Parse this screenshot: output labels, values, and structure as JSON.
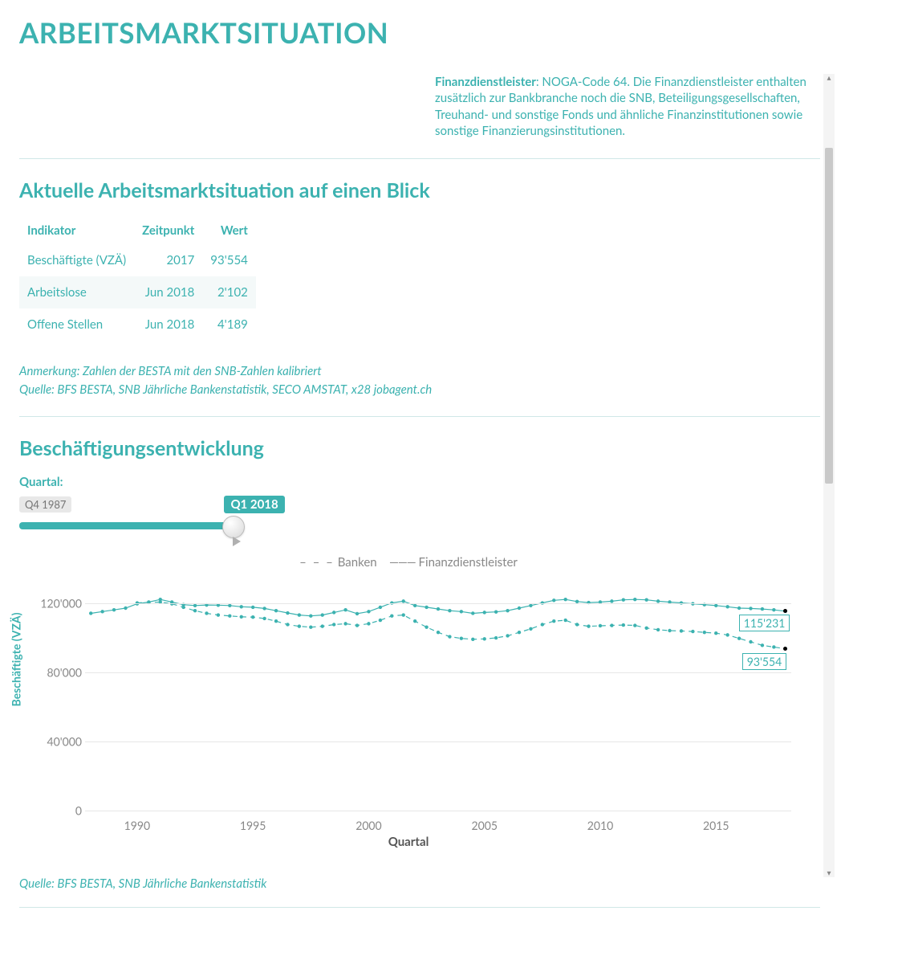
{
  "page": {
    "title": "ARBEITSMARKTSITUATION"
  },
  "intro": {
    "bold": "Finanzdienstleister",
    "rest": ": NOGA-Code 64. Die Finanzdienstleister enthalten zusätzlich zur Bankbranche noch die SNB, Beteiligungsgesellschaften, Treuhand- und sonstige Fonds und ähnliche Finanzinstitutionen sowie sonstige Finanzierungsinstitutionen."
  },
  "summary": {
    "title": "Aktuelle Arbeitsmarktsituation auf einen Blick",
    "columns": [
      "Indikator",
      "Zeitpunkt",
      "Wert"
    ],
    "rows": [
      {
        "indikator": "Beschäftigte (VZÄ)",
        "zeit": "2017",
        "wert": "93'554"
      },
      {
        "indikator": "Arbeitslose",
        "zeit": "Jun 2018",
        "wert": "2'102"
      },
      {
        "indikator": "Offene Stellen",
        "zeit": "Jun 2018",
        "wert": "4'189"
      }
    ],
    "note1": "Anmerkung: Zahlen der BESTA mit den SNB-Zahlen kalibriert",
    "note2": "Quelle: BFS BESTA, SNB Jährliche Bankenstatistik, SECO AMSTAT, x28 jobagent.ch"
  },
  "dev": {
    "title": "Beschäftigungsentwicklung",
    "quartal_label": "Quartal:",
    "slider_min_label": "Q4 1987",
    "slider_max_label": "Q1 2018",
    "legend": {
      "banken": "Banken",
      "finanz": "Finanzdienstleister"
    },
    "y_title": "Beschäftigte (VZÄ)",
    "x_title": "Quartal",
    "y_ticks": [
      "0",
      "40'000",
      "80'000",
      "120'000"
    ],
    "ylim": [
      0,
      130000
    ],
    "x_ticks": [
      {
        "label": "1990",
        "year": 1990
      },
      {
        "label": "1995",
        "year": 1995
      },
      {
        "label": "2000",
        "year": 2000
      },
      {
        "label": "2005",
        "year": 2005
      },
      {
        "label": "2010",
        "year": 2010
      },
      {
        "label": "2015",
        "year": 2015
      }
    ],
    "x_range": [
      1987.75,
      2018.25
    ],
    "label_finanz": "115'231",
    "label_banken": "93'554",
    "source": "Quelle: BFS BESTA, SNB Jährliche Bankenstatistik",
    "colors": {
      "primary": "#3cb2b0",
      "grid": "#e7e7e7",
      "tick_text": "#888888",
      "series": "#3cb2b0",
      "endpoint": "#000000"
    },
    "series": {
      "finanz": [
        {
          "t": 1988.0,
          "v": 114000
        },
        {
          "t": 1988.5,
          "v": 115000
        },
        {
          "t": 1989.0,
          "v": 116000
        },
        {
          "t": 1989.5,
          "v": 117000
        },
        {
          "t": 1990.0,
          "v": 119500
        },
        {
          "t": 1990.5,
          "v": 120500
        },
        {
          "t": 1991.0,
          "v": 122000
        },
        {
          "t": 1991.5,
          "v": 120500
        },
        {
          "t": 1992.0,
          "v": 119000
        },
        {
          "t": 1992.5,
          "v": 118500
        },
        {
          "t": 1993.0,
          "v": 118800
        },
        {
          "t": 1993.5,
          "v": 118700
        },
        {
          "t": 1994.0,
          "v": 118500
        },
        {
          "t": 1994.5,
          "v": 117800
        },
        {
          "t": 1995.0,
          "v": 117500
        },
        {
          "t": 1995.5,
          "v": 116800
        },
        {
          "t": 1996.0,
          "v": 115500
        },
        {
          "t": 1996.5,
          "v": 114200
        },
        {
          "t": 1997.0,
          "v": 113000
        },
        {
          "t": 1997.5,
          "v": 112500
        },
        {
          "t": 1998.0,
          "v": 113000
        },
        {
          "t": 1998.5,
          "v": 114500
        },
        {
          "t": 1999.0,
          "v": 116000
        },
        {
          "t": 1999.5,
          "v": 113800
        },
        {
          "t": 2000.0,
          "v": 115000
        },
        {
          "t": 2000.5,
          "v": 117500
        },
        {
          "t": 2001.0,
          "v": 120000
        },
        {
          "t": 2001.5,
          "v": 121000
        },
        {
          "t": 2002.0,
          "v": 118500
        },
        {
          "t": 2002.5,
          "v": 117500
        },
        {
          "t": 2003.0,
          "v": 116500
        },
        {
          "t": 2003.5,
          "v": 115500
        },
        {
          "t": 2004.0,
          "v": 115000
        },
        {
          "t": 2004.5,
          "v": 114000
        },
        {
          "t": 2005.0,
          "v": 114500
        },
        {
          "t": 2005.5,
          "v": 114800
        },
        {
          "t": 2006.0,
          "v": 115500
        },
        {
          "t": 2006.5,
          "v": 117000
        },
        {
          "t": 2007.0,
          "v": 118500
        },
        {
          "t": 2007.5,
          "v": 120000
        },
        {
          "t": 2008.0,
          "v": 121500
        },
        {
          "t": 2008.5,
          "v": 122000
        },
        {
          "t": 2009.0,
          "v": 120800
        },
        {
          "t": 2009.5,
          "v": 120200
        },
        {
          "t": 2010.0,
          "v": 120500
        },
        {
          "t": 2010.5,
          "v": 121000
        },
        {
          "t": 2011.0,
          "v": 121800
        },
        {
          "t": 2011.5,
          "v": 122000
        },
        {
          "t": 2012.0,
          "v": 121800
        },
        {
          "t": 2012.5,
          "v": 121000
        },
        {
          "t": 2013.0,
          "v": 120500
        },
        {
          "t": 2013.5,
          "v": 120000
        },
        {
          "t": 2014.0,
          "v": 119500
        },
        {
          "t": 2014.5,
          "v": 119000
        },
        {
          "t": 2015.0,
          "v": 118500
        },
        {
          "t": 2015.5,
          "v": 117800
        },
        {
          "t": 2016.0,
          "v": 117000
        },
        {
          "t": 2016.5,
          "v": 116800
        },
        {
          "t": 2017.0,
          "v": 116500
        },
        {
          "t": 2017.5,
          "v": 116000
        },
        {
          "t": 2018.0,
          "v": 115231
        }
      ],
      "banken": [
        {
          "t": 1990.0,
          "v": 120000
        },
        {
          "t": 1990.5,
          "v": 120300
        },
        {
          "t": 1991.0,
          "v": 120500
        },
        {
          "t": 1991.5,
          "v": 119500
        },
        {
          "t": 1992.0,
          "v": 117500
        },
        {
          "t": 1992.5,
          "v": 115500
        },
        {
          "t": 1993.0,
          "v": 114000
        },
        {
          "t": 1993.5,
          "v": 113000
        },
        {
          "t": 1994.0,
          "v": 112500
        },
        {
          "t": 1994.5,
          "v": 112000
        },
        {
          "t": 1995.0,
          "v": 111800
        },
        {
          "t": 1995.5,
          "v": 111000
        },
        {
          "t": 1996.0,
          "v": 109500
        },
        {
          "t": 1996.5,
          "v": 107500
        },
        {
          "t": 1997.0,
          "v": 106500
        },
        {
          "t": 1997.5,
          "v": 106000
        },
        {
          "t": 1998.0,
          "v": 106500
        },
        {
          "t": 1998.5,
          "v": 107500
        },
        {
          "t": 1999.0,
          "v": 108000
        },
        {
          "t": 1999.5,
          "v": 107000
        },
        {
          "t": 2000.0,
          "v": 108000
        },
        {
          "t": 2000.5,
          "v": 110000
        },
        {
          "t": 2001.0,
          "v": 112500
        },
        {
          "t": 2001.5,
          "v": 113000
        },
        {
          "t": 2002.0,
          "v": 109500
        },
        {
          "t": 2002.5,
          "v": 106000
        },
        {
          "t": 2003.0,
          "v": 103000
        },
        {
          "t": 2003.5,
          "v": 100500
        },
        {
          "t": 2004.0,
          "v": 99500
        },
        {
          "t": 2004.5,
          "v": 99000
        },
        {
          "t": 2005.0,
          "v": 99200
        },
        {
          "t": 2005.5,
          "v": 99800
        },
        {
          "t": 2006.0,
          "v": 101000
        },
        {
          "t": 2006.5,
          "v": 103000
        },
        {
          "t": 2007.0,
          "v": 105000
        },
        {
          "t": 2007.5,
          "v": 107500
        },
        {
          "t": 2008.0,
          "v": 109500
        },
        {
          "t": 2008.5,
          "v": 110000
        },
        {
          "t": 2009.0,
          "v": 107500
        },
        {
          "t": 2009.5,
          "v": 106500
        },
        {
          "t": 2010.0,
          "v": 106800
        },
        {
          "t": 2010.5,
          "v": 107000
        },
        {
          "t": 2011.0,
          "v": 107200
        },
        {
          "t": 2011.5,
          "v": 107000
        },
        {
          "t": 2012.0,
          "v": 105500
        },
        {
          "t": 2012.5,
          "v": 104500
        },
        {
          "t": 2013.0,
          "v": 104000
        },
        {
          "t": 2013.5,
          "v": 103800
        },
        {
          "t": 2014.0,
          "v": 103500
        },
        {
          "t": 2014.5,
          "v": 103000
        },
        {
          "t": 2015.0,
          "v": 102500
        },
        {
          "t": 2015.5,
          "v": 101500
        },
        {
          "t": 2016.0,
          "v": 99500
        },
        {
          "t": 2016.5,
          "v": 97500
        },
        {
          "t": 2017.0,
          "v": 95500
        },
        {
          "t": 2017.5,
          "v": 94500
        },
        {
          "t": 2018.0,
          "v": 93554
        }
      ]
    }
  }
}
